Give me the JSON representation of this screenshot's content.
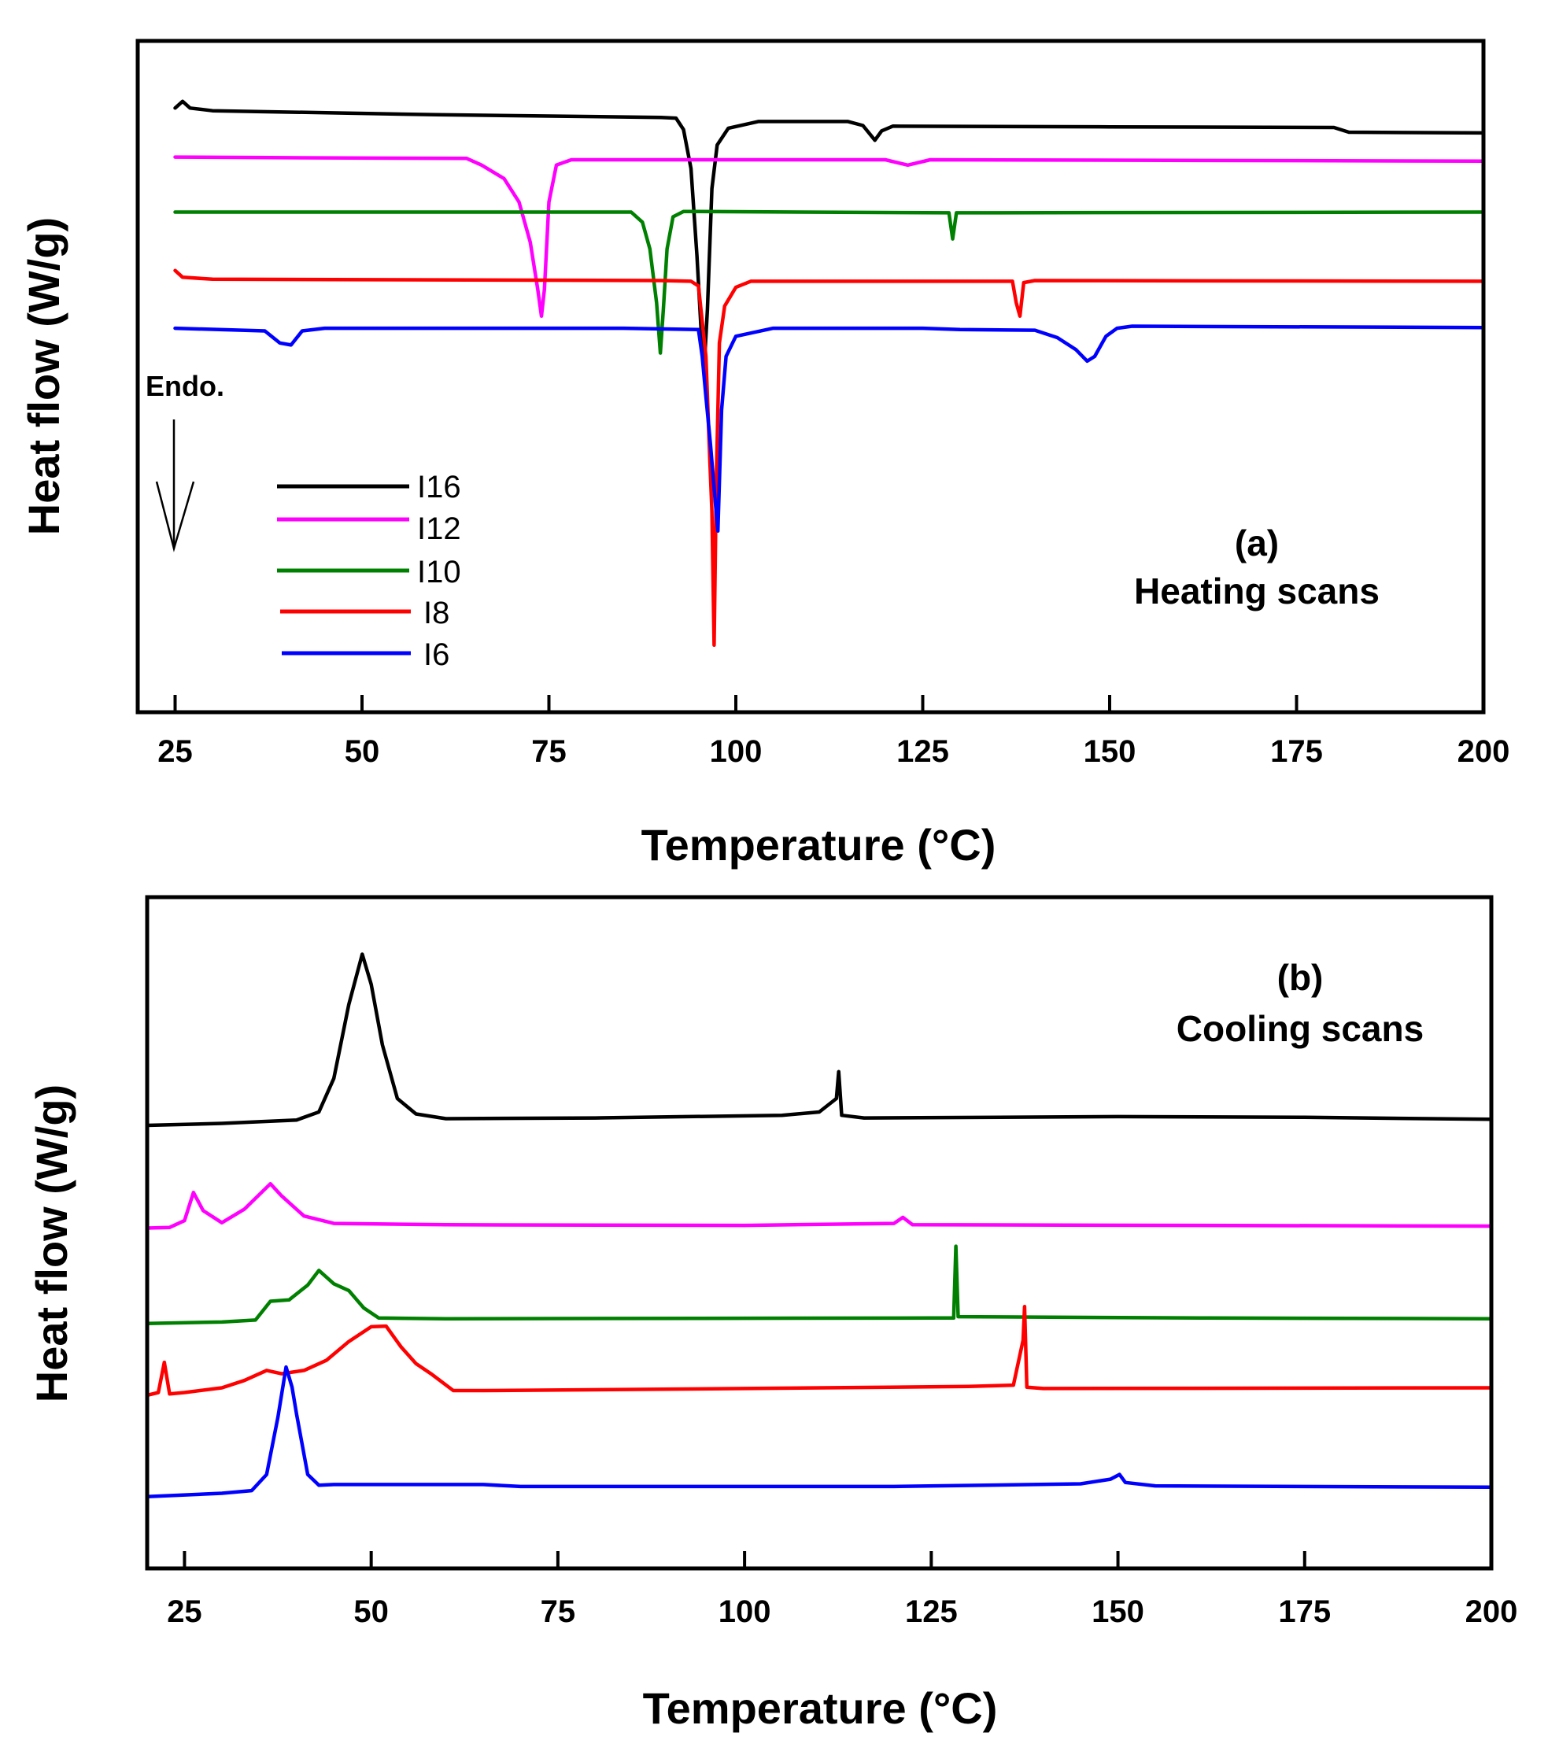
{
  "chart_data": [
    {
      "type": "line",
      "panel": "a",
      "panel_label": "(a)",
      "annotation": "Heating scans",
      "xlabel": "Temperature (°C)",
      "ylabel": "Heat flow (W/g)",
      "xlim": [
        20,
        200
      ],
      "xticks": [
        25,
        50,
        75,
        100,
        125,
        150,
        175,
        200
      ],
      "ylim": [
        0,
        100
      ],
      "endo_label": "Endo.",
      "legend": [
        "I16",
        "I12",
        "I10",
        "I8",
        "I6"
      ],
      "series": [
        {
          "name": "I16",
          "color": "#000000",
          "points": [
            [
              25,
              90
            ],
            [
              26,
              91
            ],
            [
              27,
              90
            ],
            [
              30,
              89.6
            ],
            [
              60,
              89
            ],
            [
              90,
              88.6
            ],
            [
              92,
              88.5
            ],
            [
              93,
              86.8
            ],
            [
              94,
              81
            ],
            [
              94.8,
              68
            ],
            [
              95.4,
              56
            ],
            [
              95.8,
              52
            ],
            [
              96.2,
              60
            ],
            [
              96.8,
              78
            ],
            [
              97.5,
              84.5
            ],
            [
              99,
              87
            ],
            [
              103,
              88
            ],
            [
              115,
              88
            ],
            [
              117,
              87.4
            ],
            [
              118.6,
              85.2
            ],
            [
              119.5,
              86.6
            ],
            [
              121,
              87.3
            ],
            [
              150,
              87.2
            ],
            [
              180,
              87.1
            ],
            [
              182,
              86.4
            ],
            [
              200,
              86.3
            ]
          ]
        },
        {
          "name": "I12",
          "color": "#ff00ff",
          "points": [
            [
              25,
              82.7
            ],
            [
              40,
              82.6
            ],
            [
              64,
              82.5
            ],
            [
              66,
              81.5
            ],
            [
              69,
              79.5
            ],
            [
              71,
              76
            ],
            [
              72.5,
              70
            ],
            [
              73.5,
              63
            ],
            [
              74,
              59
            ],
            [
              74.4,
              63
            ],
            [
              75,
              76
            ],
            [
              76,
              81.5
            ],
            [
              78,
              82.3
            ],
            [
              120,
              82.3
            ],
            [
              123,
              81.5
            ],
            [
              126,
              82.3
            ],
            [
              200,
              82.1
            ]
          ]
        },
        {
          "name": "I10",
          "color": "#008000",
          "points": [
            [
              25,
              74.5
            ],
            [
              86,
              74.5
            ],
            [
              87.5,
              73
            ],
            [
              88.5,
              69
            ],
            [
              89.4,
              61
            ],
            [
              89.9,
              53.5
            ],
            [
              90.3,
              60
            ],
            [
              90.8,
              69
            ],
            [
              91.6,
              73.8
            ],
            [
              93,
              74.6
            ],
            [
              128.5,
              74.4
            ],
            [
              129,
              70.5
            ],
            [
              129.5,
              74.4
            ],
            [
              200,
              74.5
            ]
          ]
        },
        {
          "name": "I8",
          "color": "#ff0000",
          "points": [
            [
              25,
              65.8
            ],
            [
              26,
              64.8
            ],
            [
              30,
              64.5
            ],
            [
              90,
              64.3
            ],
            [
              94,
              64.2
            ],
            [
              95,
              63.5
            ],
            [
              96,
              53
            ],
            [
              96.5,
              38
            ],
            [
              96.8,
              30
            ],
            [
              97.1,
              10
            ],
            [
              97.4,
              35
            ],
            [
              97.8,
              55
            ],
            [
              98.5,
              60.5
            ],
            [
              100,
              63.3
            ],
            [
              102,
              64.2
            ],
            [
              137,
              64.2
            ],
            [
              137.5,
              61
            ],
            [
              138,
              59
            ],
            [
              138.5,
              64
            ],
            [
              140,
              64.3
            ],
            [
              200,
              64.2
            ]
          ]
        },
        {
          "name": "I6",
          "color": "#0000ff",
          "points": [
            [
              25,
              57.2
            ],
            [
              37,
              56.8
            ],
            [
              39,
              55
            ],
            [
              40.5,
              54.7
            ],
            [
              42,
              56.8
            ],
            [
              45,
              57.2
            ],
            [
              85,
              57.2
            ],
            [
              95,
              57
            ],
            [
              95.5,
              53
            ],
            [
              96,
              47
            ],
            [
              96.6,
              40
            ],
            [
              97.2,
              32
            ],
            [
              97.6,
              27
            ],
            [
              98.1,
              45
            ],
            [
              98.7,
              53
            ],
            [
              100,
              56
            ],
            [
              105,
              57.2
            ],
            [
              125,
              57.2
            ],
            [
              130,
              57
            ],
            [
              140,
              56.9
            ],
            [
              143,
              55.8
            ],
            [
              145.5,
              54
            ],
            [
              147,
              52.3
            ],
            [
              148,
              53
            ],
            [
              149.5,
              56
            ],
            [
              151,
              57.2
            ],
            [
              153,
              57.5
            ],
            [
              200,
              57.3
            ]
          ]
        }
      ]
    },
    {
      "type": "line",
      "panel": "b",
      "panel_label": "(b)",
      "annotation": "Cooling scans",
      "xlabel": "Temperature (°C)",
      "ylabel": "Heat flow (W/g)",
      "xlim": [
        20,
        200
      ],
      "xticks": [
        25,
        50,
        75,
        100,
        125,
        150,
        175,
        200
      ],
      "ylim": [
        0,
        100
      ],
      "series": [
        {
          "name": "I16",
          "color": "#000000",
          "points": [
            [
              20,
              66
            ],
            [
              30,
              66.3
            ],
            [
              40,
              66.8
            ],
            [
              43,
              68
            ],
            [
              45,
              73
            ],
            [
              47,
              84
            ],
            [
              48.8,
              91.5
            ],
            [
              50,
              87
            ],
            [
              51.5,
              78
            ],
            [
              53.5,
              70
            ],
            [
              56,
              67.7
            ],
            [
              60,
              67
            ],
            [
              80,
              67.1
            ],
            [
              105,
              67.5
            ],
            [
              110,
              68
            ],
            [
              112.3,
              70
            ],
            [
              112.6,
              74
            ],
            [
              113,
              67.5
            ],
            [
              116,
              67.1
            ],
            [
              150,
              67.3
            ],
            [
              175,
              67.2
            ],
            [
              200,
              66.9
            ]
          ]
        },
        {
          "name": "I12",
          "color": "#ff00ff",
          "points": [
            [
              20,
              50.7
            ],
            [
              23,
              50.8
            ],
            [
              25,
              51.8
            ],
            [
              26.2,
              56
            ],
            [
              27.5,
              53.3
            ],
            [
              30,
              51.5
            ],
            [
              33,
              53.5
            ],
            [
              36.5,
              57.3
            ],
            [
              38,
              55.5
            ],
            [
              41,
              52.5
            ],
            [
              45,
              51.4
            ],
            [
              60,
              51.2
            ],
            [
              100,
              51.1
            ],
            [
              120,
              51.4
            ],
            [
              121.2,
              52.3
            ],
            [
              122.5,
              51.2
            ],
            [
              200,
              51
            ]
          ]
        },
        {
          "name": "I10",
          "color": "#008000",
          "points": [
            [
              20,
              36.5
            ],
            [
              30,
              36.7
            ],
            [
              34.5,
              37
            ],
            [
              36.5,
              39.8
            ],
            [
              39,
              40
            ],
            [
              41.5,
              42.2
            ],
            [
              43,
              44.4
            ],
            [
              45,
              42.4
            ],
            [
              47,
              41.4
            ],
            [
              49,
              38.8
            ],
            [
              51,
              37.3
            ],
            [
              60,
              37.2
            ],
            [
              125,
              37.3
            ],
            [
              128,
              37.3
            ],
            [
              128.3,
              48
            ],
            [
              128.6,
              37.5
            ],
            [
              162,
              37.3
            ],
            [
              200,
              37.2
            ]
          ]
        },
        {
          "name": "I8",
          "color": "#ff0000",
          "points": [
            [
              20,
              25.8
            ],
            [
              21.5,
              26.2
            ],
            [
              22.3,
              30.7
            ],
            [
              23,
              26
            ],
            [
              25,
              26.2
            ],
            [
              30,
              26.9
            ],
            [
              33,
              28
            ],
            [
              36,
              29.5
            ],
            [
              38,
              29
            ],
            [
              41,
              29.5
            ],
            [
              44,
              31
            ],
            [
              47,
              33.8
            ],
            [
              50,
              36
            ],
            [
              52,
              36.1
            ],
            [
              54,
              33
            ],
            [
              56,
              30.5
            ],
            [
              58,
              29
            ],
            [
              61,
              26.5
            ],
            [
              65,
              26.5
            ],
            [
              100,
              26.8
            ],
            [
              130,
              27.1
            ],
            [
              136,
              27.3
            ],
            [
              137.3,
              34
            ],
            [
              137.5,
              39
            ],
            [
              137.8,
              27
            ],
            [
              140,
              26.8
            ],
            [
              200,
              26.9
            ]
          ]
        },
        {
          "name": "I6",
          "color": "#0000ff",
          "points": [
            [
              20,
              10.7
            ],
            [
              30,
              11.2
            ],
            [
              34,
              11.6
            ],
            [
              36,
              14
            ],
            [
              37.5,
              22.5
            ],
            [
              38.6,
              30
            ],
            [
              39.4,
              27
            ],
            [
              40,
              23
            ],
            [
              41.5,
              14
            ],
            [
              43,
              12.4
            ],
            [
              45,
              12.5
            ],
            [
              65,
              12.5
            ],
            [
              70,
              12.2
            ],
            [
              120,
              12.2
            ],
            [
              145,
              12.6
            ],
            [
              149,
              13.3
            ],
            [
              150.2,
              14
            ],
            [
              151,
              12.8
            ],
            [
              155,
              12.3
            ],
            [
              200,
              12.1
            ]
          ]
        }
      ]
    }
  ]
}
